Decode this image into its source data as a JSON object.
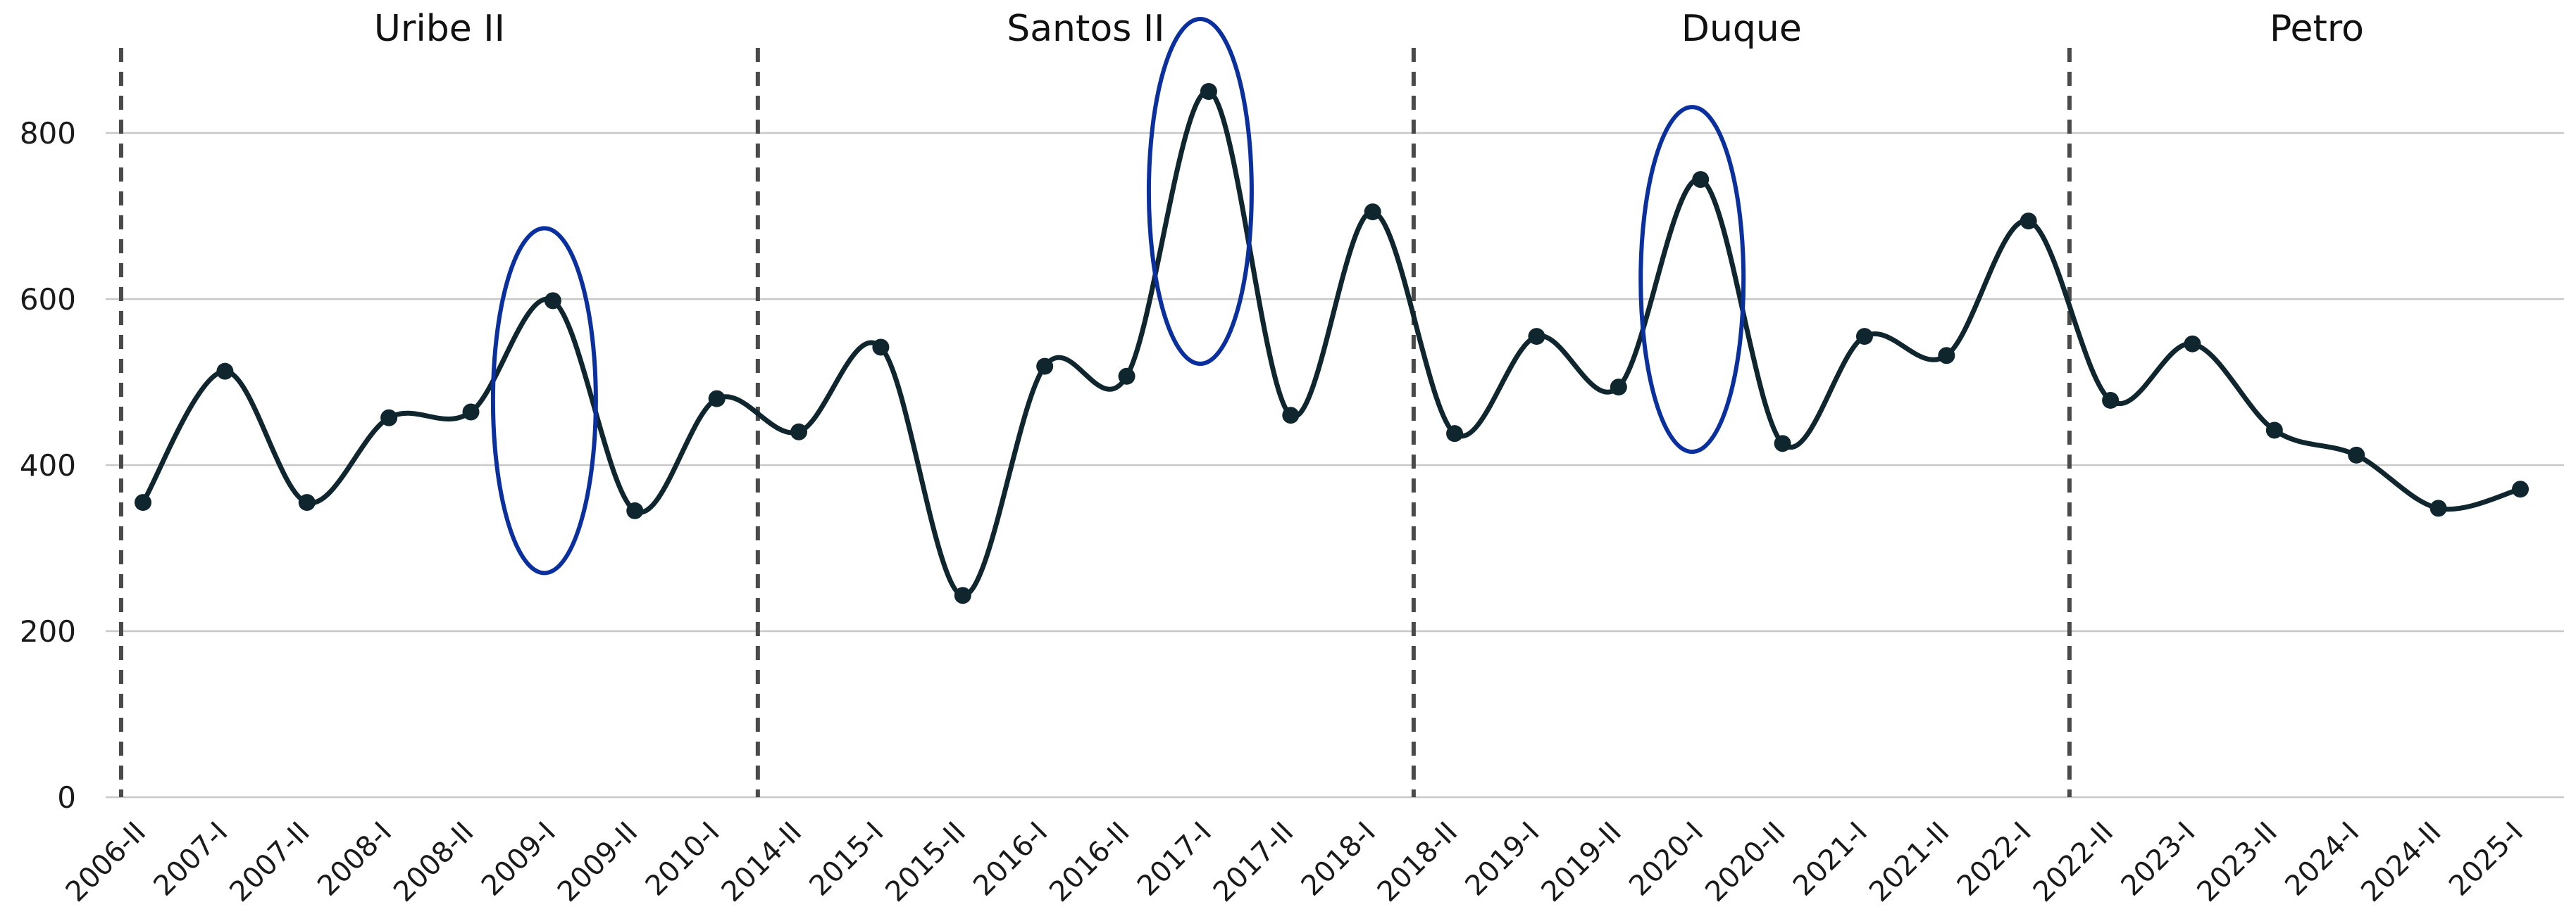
{
  "chart_data": {
    "type": "line",
    "title": "",
    "xlabel": "",
    "ylabel": "",
    "ylim": [
      0,
      900
    ],
    "yticks": [
      0,
      200,
      400,
      600,
      800
    ],
    "grid": true,
    "categories": [
      "2006-II",
      "2007-I",
      "2007-II",
      "2008-I",
      "2008-II",
      "2009-I",
      "2009-II",
      "2010-I",
      "2014-II",
      "2015-I",
      "2015-II",
      "2016-I",
      "2016-II",
      "2017-I",
      "2017-II",
      "2018-I",
      "2018-II",
      "2019-I",
      "2019-II",
      "2020-I",
      "2020-II",
      "2021-I",
      "2021-II",
      "2022-I",
      "2022-II",
      "2023-I",
      "2023-II",
      "2024-I",
      "2024-II",
      "2025-I"
    ],
    "series": [
      {
        "values": [
          355,
          513,
          355,
          457,
          464,
          598,
          345,
          480,
          440,
          542,
          243,
          519,
          507,
          850,
          460,
          705,
          438,
          555,
          494,
          744,
          426,
          555,
          532,
          694,
          478,
          546,
          442,
          412,
          348,
          371
        ]
      }
    ],
    "periods": [
      {
        "label": "Uribe II",
        "start_index": 0
      },
      {
        "label": "Santos II",
        "start_index": 7
      },
      {
        "label": "Duque",
        "start_index": 15
      },
      {
        "label": "Petro",
        "start_index": 23
      }
    ],
    "highlighted_categories": [
      "2009-I",
      "2017-I",
      "2020-I"
    ],
    "colors": {
      "line": "#10262f",
      "highlight": "#0a2f9e",
      "divider": "#4a4a4a",
      "grid": "#c8c8c8"
    }
  }
}
